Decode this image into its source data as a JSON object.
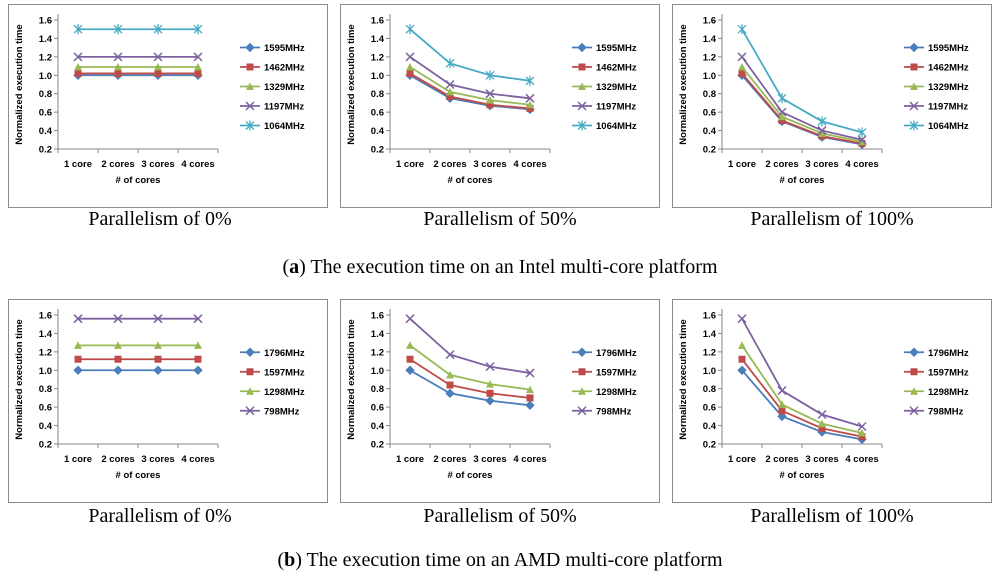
{
  "figure_a": {
    "caption_letter": "a",
    "caption_text": "The execution time on an Intel multi-core platform",
    "subcaptions": [
      "Parallelism of 0%",
      "Parallelism of 50%",
      "Parallelism of 100%"
    ]
  },
  "figure_b": {
    "caption_letter": "b",
    "caption_text": "The execution time on an AMD multi-core platform",
    "subcaptions": [
      "Parallelism of 0%",
      "Parallelism of 50%",
      "Parallelism of 100%"
    ]
  },
  "chart_data": [
    {
      "type": "line",
      "xlabel": "# of cores",
      "ylabel": "Normalized execution time",
      "categories": [
        "1 core",
        "2 cores",
        "3 cores",
        "4 cores"
      ],
      "ylim": [
        0.2,
        1.6
      ],
      "yticks": [
        "0.2",
        "0.4",
        "0.6",
        "0.8",
        "1.0",
        "1.2",
        "1.4",
        "1.6"
      ],
      "grid": "none",
      "legend": "right",
      "series": [
        {
          "name": "1595MHz",
          "values": [
            1.0,
            1.0,
            1.0,
            1.0
          ],
          "color": "#4a7ebb",
          "marker": "diamond"
        },
        {
          "name": "1462MHz",
          "values": [
            1.02,
            1.02,
            1.02,
            1.02
          ],
          "color": "#be4b48",
          "marker": "square"
        },
        {
          "name": "1329MHz",
          "values": [
            1.09,
            1.09,
            1.09,
            1.09
          ],
          "color": "#98b954",
          "marker": "triangle"
        },
        {
          "name": "1197MHz",
          "values": [
            1.2,
            1.2,
            1.2,
            1.2
          ],
          "color": "#7d60a0",
          "marker": "x"
        },
        {
          "name": "1064MHz",
          "values": [
            1.5,
            1.5,
            1.5,
            1.5
          ],
          "color": "#46aac5",
          "marker": "star"
        }
      ]
    },
    {
      "type": "line",
      "xlabel": "# of cores",
      "ylabel": "Normalized execution time",
      "categories": [
        "1 core",
        "2 cores",
        "3 cores",
        "4 cores"
      ],
      "ylim": [
        0.2,
        1.6
      ],
      "yticks": [
        "0.2",
        "0.4",
        "0.6",
        "0.8",
        "1.0",
        "1.2",
        "1.4",
        "1.6"
      ],
      "grid": "none",
      "legend": "right",
      "series": [
        {
          "name": "1595MHz",
          "values": [
            1.0,
            0.75,
            0.67,
            0.63
          ],
          "color": "#4a7ebb",
          "marker": "diamond"
        },
        {
          "name": "1462MHz",
          "values": [
            1.02,
            0.77,
            0.68,
            0.64
          ],
          "color": "#be4b48",
          "marker": "square"
        },
        {
          "name": "1329MHz",
          "values": [
            1.09,
            0.82,
            0.73,
            0.68
          ],
          "color": "#98b954",
          "marker": "triangle"
        },
        {
          "name": "1197MHz",
          "values": [
            1.2,
            0.9,
            0.8,
            0.75
          ],
          "color": "#7d60a0",
          "marker": "x"
        },
        {
          "name": "1064MHz",
          "values": [
            1.5,
            1.13,
            1.0,
            0.94
          ],
          "color": "#46aac5",
          "marker": "star"
        }
      ]
    },
    {
      "type": "line",
      "xlabel": "# of cores",
      "ylabel": "Normalized execution time",
      "categories": [
        "1 core",
        "2 cores",
        "3 cores",
        "4 cores"
      ],
      "ylim": [
        0.2,
        1.6
      ],
      "yticks": [
        "0.2",
        "0.4",
        "0.6",
        "0.8",
        "1.0",
        "1.2",
        "1.4",
        "1.6"
      ],
      "grid": "none",
      "legend": "right",
      "series": [
        {
          "name": "1595MHz",
          "values": [
            1.0,
            0.5,
            0.33,
            0.25
          ],
          "color": "#4a7ebb",
          "marker": "diamond"
        },
        {
          "name": "1462MHz",
          "values": [
            1.02,
            0.51,
            0.34,
            0.26
          ],
          "color": "#be4b48",
          "marker": "square"
        },
        {
          "name": "1329MHz",
          "values": [
            1.09,
            0.55,
            0.37,
            0.28
          ],
          "color": "#98b954",
          "marker": "triangle"
        },
        {
          "name": "1197MHz",
          "values": [
            1.2,
            0.6,
            0.4,
            0.3
          ],
          "color": "#7d60a0",
          "marker": "x"
        },
        {
          "name": "1064MHz",
          "values": [
            1.5,
            0.75,
            0.5,
            0.38
          ],
          "color": "#46aac5",
          "marker": "star"
        }
      ]
    },
    {
      "type": "line",
      "xlabel": "# of cores",
      "ylabel": "Normalized execution time",
      "categories": [
        "1 core",
        "2 cores",
        "3 cores",
        "4 cores"
      ],
      "ylim": [
        0.2,
        1.6
      ],
      "yticks": [
        "0.2",
        "0.4",
        "0.6",
        "0.8",
        "1.0",
        "1.2",
        "1.4",
        "1.6"
      ],
      "grid": "none",
      "legend": "right",
      "series": [
        {
          "name": "1796MHz",
          "values": [
            1.0,
            1.0,
            1.0,
            1.0
          ],
          "color": "#4a7ebb",
          "marker": "diamond"
        },
        {
          "name": "1597MHz",
          "values": [
            1.12,
            1.12,
            1.12,
            1.12
          ],
          "color": "#be4b48",
          "marker": "square"
        },
        {
          "name": "1298MHz",
          "values": [
            1.27,
            1.27,
            1.27,
            1.27
          ],
          "color": "#98b954",
          "marker": "triangle"
        },
        {
          "name": "798MHz",
          "values": [
            1.56,
            1.56,
            1.56,
            1.56
          ],
          "color": "#7d60a0",
          "marker": "x"
        }
      ]
    },
    {
      "type": "line",
      "xlabel": "# of cores",
      "ylabel": "Normalized execution time",
      "categories": [
        "1 core",
        "2 cores",
        "3 cores",
        "4 cores"
      ],
      "ylim": [
        0.2,
        1.6
      ],
      "yticks": [
        "0.2",
        "0.4",
        "0.6",
        "0.8",
        "1.0",
        "1.2",
        "1.4",
        "1.6"
      ],
      "grid": "none",
      "legend": "right",
      "series": [
        {
          "name": "1796MHz",
          "values": [
            1.0,
            0.75,
            0.67,
            0.62
          ],
          "color": "#4a7ebb",
          "marker": "diamond"
        },
        {
          "name": "1597MHz",
          "values": [
            1.12,
            0.84,
            0.75,
            0.7
          ],
          "color": "#be4b48",
          "marker": "square"
        },
        {
          "name": "1298MHz",
          "values": [
            1.27,
            0.95,
            0.85,
            0.79
          ],
          "color": "#98b954",
          "marker": "triangle"
        },
        {
          "name": "798MHz",
          "values": [
            1.56,
            1.17,
            1.04,
            0.97
          ],
          "color": "#7d60a0",
          "marker": "x"
        }
      ]
    },
    {
      "type": "line",
      "xlabel": "# of cores",
      "ylabel": "Normalized execution time",
      "categories": [
        "1 core",
        "2 cores",
        "3 cores",
        "4 cores"
      ],
      "ylim": [
        0.2,
        1.6
      ],
      "yticks": [
        "0.2",
        "0.4",
        "0.6",
        "0.8",
        "1.0",
        "1.2",
        "1.4",
        "1.6"
      ],
      "grid": "none",
      "legend": "right",
      "series": [
        {
          "name": "1796MHz",
          "values": [
            1.0,
            0.5,
            0.33,
            0.25
          ],
          "color": "#4a7ebb",
          "marker": "diamond"
        },
        {
          "name": "1597MHz",
          "values": [
            1.12,
            0.56,
            0.37,
            0.28
          ],
          "color": "#be4b48",
          "marker": "square"
        },
        {
          "name": "1298MHz",
          "values": [
            1.27,
            0.63,
            0.42,
            0.32
          ],
          "color": "#98b954",
          "marker": "triangle"
        },
        {
          "name": "798MHz",
          "values": [
            1.56,
            0.78,
            0.52,
            0.39
          ],
          "color": "#7d60a0",
          "marker": "x"
        }
      ]
    }
  ]
}
